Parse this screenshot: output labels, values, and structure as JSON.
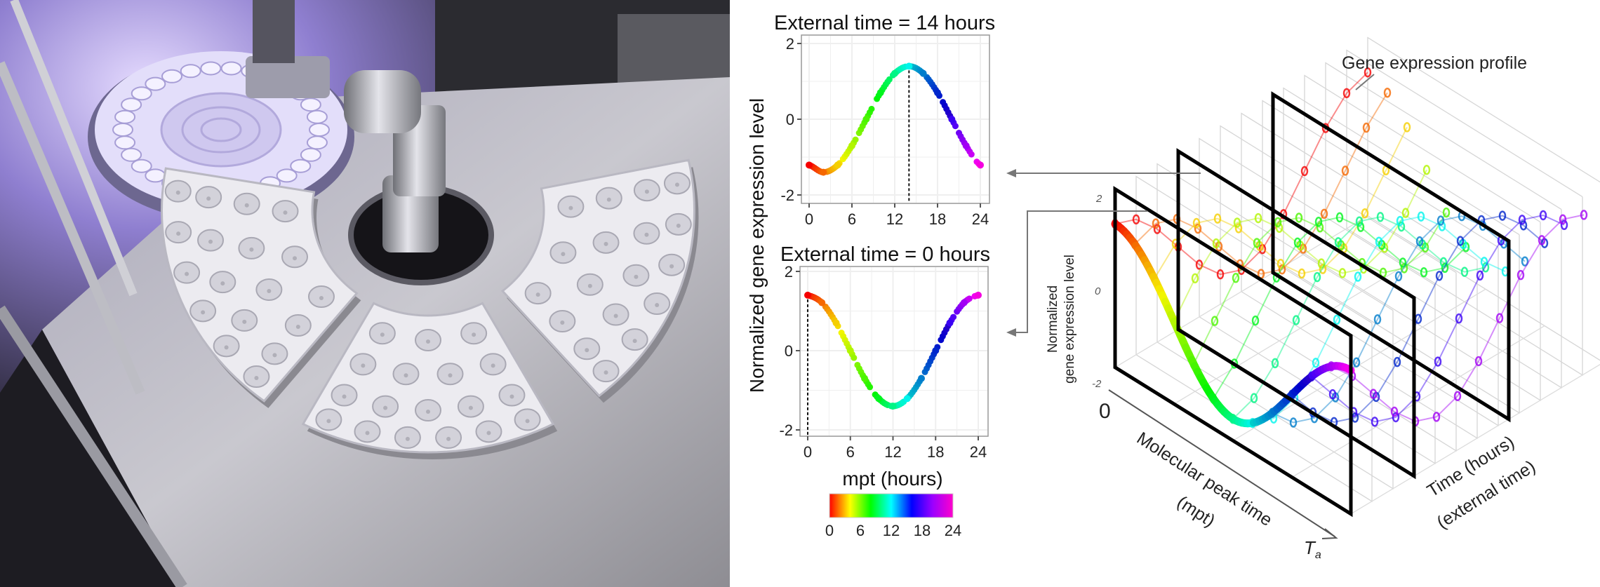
{
  "figure": {
    "photo": {
      "description_label": ""
    },
    "shared_ylabel": "Normalized  gene  expression  level",
    "colorbar": {
      "label_ticks": [
        "0",
        "6",
        "12",
        "18",
        "24"
      ],
      "range": [
        0,
        24
      ],
      "colors": [
        "#ff0000",
        "#ffff00",
        "#00ff00",
        "#00ffff",
        "#0000ff",
        "#9900ff",
        "#ff00cc"
      ]
    },
    "diagram3d": {
      "callout_label": "Gene  expression  profile",
      "ylabel_line1": "Normalized",
      "ylabel_line2": "gene expression level",
      "y_ticks": [
        "2",
        "0",
        "-2"
      ],
      "origin_label": "0",
      "xaxis_label": "Molecular peak time",
      "xaxis_sublabel": "(mpt)",
      "xaxis_end_label": "T",
      "xaxis_end_sub": "a",
      "taxis_label": "Time (hours)",
      "taxis_sublabel": "(external time)",
      "profile_model": {
        "amplitude": 1.4,
        "mpt_values": [
          0,
          2,
          4,
          6,
          8,
          10,
          12,
          14,
          16,
          18,
          20,
          22
        ],
        "external_times": [
          0,
          2,
          4,
          6,
          8,
          10,
          12,
          14,
          16,
          18,
          20,
          22,
          24
        ],
        "highlighted_panels_hours": [
          0,
          6,
          15
        ]
      }
    }
  },
  "chart_data": [
    {
      "type": "scatter",
      "title": "External  time = 14 hours",
      "xlabel": "",
      "ylabel": "Normalized gene expression level",
      "xlim": [
        0,
        24
      ],
      "ylim": [
        -2,
        2
      ],
      "x_ticks": [
        "0",
        "6",
        "12",
        "18",
        "24"
      ],
      "y_ticks": [
        "2",
        "0",
        "-2"
      ],
      "marker_line_x": 14,
      "x": [
        0,
        2,
        4,
        6,
        8,
        10,
        12,
        14,
        16,
        18,
        20,
        22,
        24
      ],
      "y": [
        -1.21,
        -1.4,
        -1.21,
        -0.7,
        0.0,
        0.7,
        1.21,
        1.4,
        1.21,
        0.7,
        0.0,
        -0.7,
        -1.21
      ],
      "color_by": "mpt"
    },
    {
      "type": "scatter",
      "title": "External  time = 0 hours",
      "xlabel": "mpt (hours)",
      "ylabel": "Normalized gene expression level",
      "xlim": [
        0,
        24
      ],
      "ylim": [
        -2,
        2
      ],
      "x_ticks": [
        "0",
        "6",
        "12",
        "18",
        "24"
      ],
      "y_ticks": [
        "2",
        "0",
        "-2"
      ],
      "marker_line_x": 0,
      "x": [
        0,
        2,
        4,
        6,
        8,
        10,
        12,
        14,
        16,
        18,
        20,
        22,
        24
      ],
      "y": [
        1.4,
        1.21,
        0.7,
        0.0,
        -0.7,
        -1.21,
        -1.4,
        -1.21,
        -0.7,
        0.0,
        0.7,
        1.21,
        1.4
      ],
      "color_by": "mpt"
    }
  ]
}
